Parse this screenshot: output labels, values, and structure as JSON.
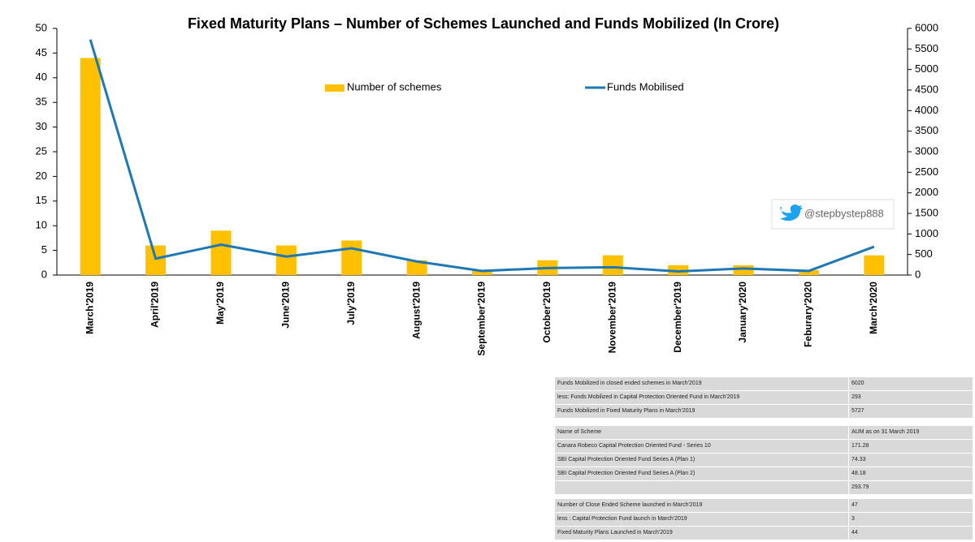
{
  "chart_data": {
    "type": "bar",
    "title": "Fixed Maturity Plans – Number of Schemes Launched and Funds Mobilized (In Crore)",
    "categories": [
      "March'2019",
      "April'2019",
      "May'2019",
      "June'2019",
      "July'2019",
      "August'2019",
      "September'2019",
      "October'2019",
      "November'2019",
      "December'2019",
      "January'2020",
      "Feburary'2020",
      "March'2020"
    ],
    "series": [
      {
        "name": "Number of schemes",
        "type": "bar",
        "color": "#ffc000",
        "values": [
          44,
          6,
          9,
          6,
          7,
          3,
          1,
          3,
          4,
          2,
          2,
          1,
          4
        ]
      },
      {
        "name": "Funds Mobilised",
        "type": "line",
        "axis": "y2",
        "color": "#1f77b4",
        "values": [
          5727,
          400,
          740,
          450,
          650,
          330,
          100,
          170,
          190,
          90,
          160,
          100,
          690
        ]
      }
    ],
    "ylim": [
      0,
      50
    ],
    "yticks": [
      0,
      5,
      10,
      15,
      20,
      25,
      30,
      35,
      40,
      45,
      50
    ],
    "y2lim": [
      0,
      6000
    ],
    "y2ticks": [
      0,
      500,
      1000,
      1500,
      2000,
      2500,
      3000,
      3500,
      4000,
      4500,
      5000,
      5500,
      6000
    ],
    "watermark": "@stepbystep888"
  },
  "table": {
    "sections": [
      {
        "rows": [
          [
            "Funds Mobilized in closed ended schemes in March'2019",
            "6020"
          ],
          [
            "less: Funds Mobilized in Capital Protection Oriented Fund in March'2019",
            "293"
          ],
          [
            "Funds Mobilized in Fixed Maturity Plans in March'2019",
            "5727"
          ]
        ]
      },
      {
        "rows": [
          [
            "Name of Scheme",
            "AUM as on 31 March 2019"
          ],
          [
            "Canara Robeco Capital Protection Oriented Fund - Series 10",
            "171.28"
          ],
          [
            "SBI Capital Protection Oriented Fund Series A (Plan 1)",
            "74.33"
          ],
          [
            "SBI Capital Protection Oriented Fund Series A (Plan 2)",
            "48.18"
          ],
          [
            null,
            "293.79"
          ]
        ]
      },
      {
        "rows": [
          [
            "Number of Close Ended Scheme launched in March'2019",
            "47"
          ],
          [
            "less : Capital Protection Fund launch in March'2019",
            "3"
          ],
          [
            "Fixed Maturity Plans Launched in March'2019",
            "44"
          ]
        ]
      }
    ]
  }
}
